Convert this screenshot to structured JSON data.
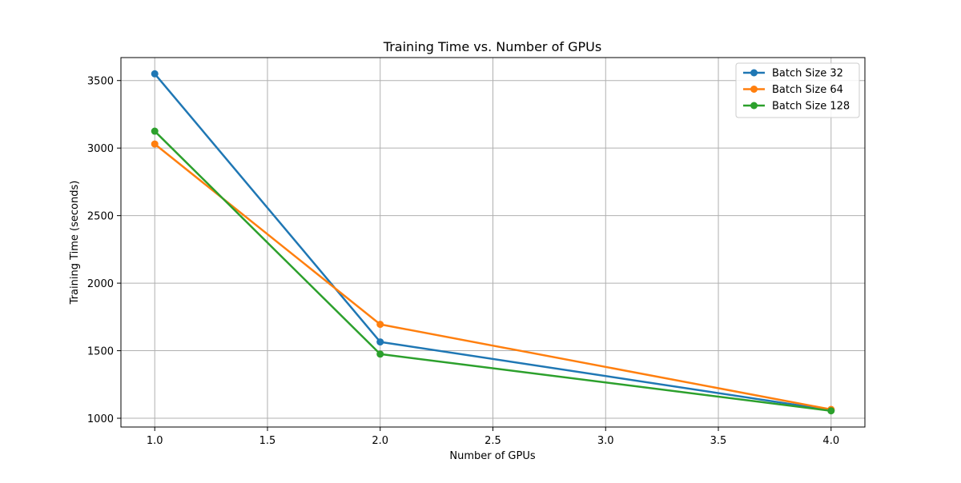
{
  "chart_data": {
    "type": "line",
    "title": "Training Time vs. Number of GPUs",
    "xlabel": "Number of GPUs",
    "ylabel": "Training Time (seconds)",
    "x": [
      1,
      2,
      4
    ],
    "xlim": [
      0.85,
      4.15
    ],
    "ylim": [
      935,
      3670
    ],
    "xticks": [
      1.0,
      1.5,
      2.0,
      2.5,
      3.0,
      3.5,
      4.0
    ],
    "xtick_labels": [
      "1.0",
      "1.5",
      "2.0",
      "2.5",
      "3.0",
      "3.5",
      "4.0"
    ],
    "yticks": [
      1000,
      1500,
      2000,
      2500,
      3000,
      3500
    ],
    "ytick_labels": [
      "1000",
      "1500",
      "2000",
      "2500",
      "3000",
      "3500"
    ],
    "grid": true,
    "legend_position": "top-right",
    "series": [
      {
        "name": "Batch Size 32",
        "color": "#1f77b4",
        "values": [
          3550,
          1565,
          1060
        ]
      },
      {
        "name": "Batch Size 64",
        "color": "#ff7f0e",
        "values": [
          3030,
          1695,
          1065
        ]
      },
      {
        "name": "Batch Size 128",
        "color": "#2ca02c",
        "values": [
          3125,
          1475,
          1055
        ]
      }
    ]
  }
}
